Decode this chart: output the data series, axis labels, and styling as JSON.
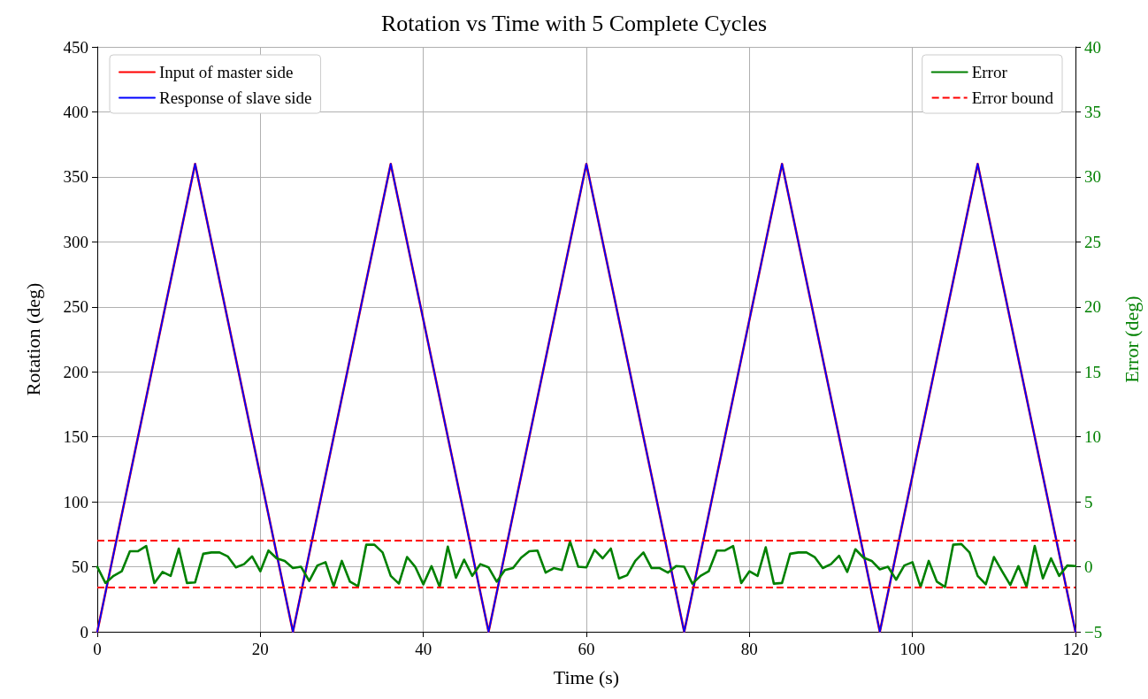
{
  "chart_data": {
    "type": "line",
    "title": "Rotation vs Time with 5 Complete Cycles",
    "xlabel": "Time (s)",
    "ylabel": "Rotation (deg)",
    "y2label": "Error (deg)",
    "xlim": [
      0,
      120
    ],
    "xticks": [
      0,
      20,
      40,
      60,
      80,
      100,
      120
    ],
    "ylim": [
      0,
      450
    ],
    "yticks": [
      0,
      50,
      100,
      150,
      200,
      250,
      300,
      350,
      400,
      450
    ],
    "y2lim": [
      -5,
      40
    ],
    "y2ticks": [
      -5,
      0,
      5,
      10,
      15,
      20,
      25,
      30,
      35,
      40
    ],
    "grid": true,
    "legend": "top",
    "marker": "none",
    "series": [
      {
        "name": "Input of master side",
        "color": "#ff0000",
        "x": [
          0,
          12,
          24,
          36,
          48,
          60,
          72,
          84,
          96,
          108,
          120
        ],
        "values": [
          0,
          360,
          0,
          360,
          0,
          360,
          0,
          360,
          0,
          360,
          0
        ]
      },
      {
        "name": "Response of slave side",
        "color": "#0000ff",
        "x": [
          0,
          12,
          24,
          36,
          48,
          60,
          72,
          84,
          96,
          108,
          120
        ],
        "values": [
          0,
          360,
          0,
          360,
          0,
          360,
          0,
          360,
          0,
          360,
          0
        ]
      },
      {
        "name": "Error",
        "color": "#008000",
        "axis": "y2",
        "x": [
          0,
          1,
          2,
          3,
          4,
          5,
          6,
          7,
          8,
          9,
          10,
          11,
          12,
          13,
          14,
          15,
          16,
          17,
          18,
          19,
          20,
          21,
          22,
          23,
          24,
          25,
          26,
          27,
          28,
          29,
          30,
          31,
          32,
          33,
          34,
          35,
          36,
          37,
          38,
          39,
          40,
          41,
          42,
          43,
          44,
          45,
          46,
          47,
          48,
          49,
          50,
          51,
          52,
          53,
          54,
          55,
          56,
          57,
          58,
          59,
          60,
          61,
          62,
          63,
          64,
          65,
          66,
          67,
          68,
          69,
          70,
          71,
          72,
          73,
          74,
          75,
          76,
          77,
          78,
          79,
          80,
          81,
          82,
          83,
          84,
          85,
          86,
          87,
          88,
          89,
          90,
          91,
          92,
          93,
          94,
          95,
          96,
          97,
          98,
          99,
          100,
          101,
          102,
          103,
          104,
          105,
          106,
          107,
          108,
          109,
          110,
          111,
          112,
          113,
          114,
          115,
          116,
          117,
          118,
          119,
          120
        ],
        "values": [
          0,
          -1.25,
          -0.7,
          -0.35,
          1.2,
          1.2,
          1.6,
          -1.25,
          -0.4,
          -0.7,
          1.4,
          -1.25,
          -1.2,
          1.0,
          1.1,
          1.1,
          0.8,
          -0.05,
          0.2,
          0.8,
          -0.35,
          1.25,
          0.65,
          0.45,
          -0.1,
          0,
          -1.1,
          0.1,
          0.35,
          -1.5,
          0.45,
          -1.15,
          -1.5,
          1.7,
          1.7,
          1.1,
          -0.7,
          -1.3,
          0.75,
          0,
          -1.35,
          0.05,
          -1.55,
          1.55,
          -0.85,
          0.55,
          -0.7,
          0.2,
          -0.05,
          -1.15,
          -0.25,
          -0.1,
          0.7,
          1.2,
          1.25,
          -0.45,
          -0.1,
          -0.25,
          1.95,
          0,
          -0.05,
          1.3,
          0.65,
          1.4,
          -0.9,
          -0.65,
          0.45,
          1.1,
          -0.1,
          -0.1,
          -0.45,
          0.05,
          0,
          -1.3,
          -0.7,
          -0.35,
          1.25,
          1.25,
          1.6,
          -1.25,
          -0.35,
          -0.7,
          1.5,
          -1.3,
          -1.25,
          1.0,
          1.1,
          1.1,
          0.75,
          -0.1,
          0.2,
          0.85,
          -0.4,
          1.35,
          0.7,
          0.45,
          -0.2,
          0,
          -1.0,
          0.1,
          0.35,
          -1.55,
          0.45,
          -1.15,
          -1.55,
          1.7,
          1.75,
          1.1,
          -0.7,
          -1.35,
          0.75,
          -0.35,
          -1.4,
          0.05,
          -1.55,
          1.6,
          -0.9,
          0.65,
          -0.7,
          0.1,
          0.05
        ]
      }
    ],
    "ref_lines": [
      {
        "axis": "y2",
        "value": 2.0,
        "label": "Error bound",
        "color": "#ff0000",
        "line_style": "dashed"
      },
      {
        "axis": "y2",
        "value": -1.6,
        "label": null,
        "color": "#ff0000",
        "line_style": "dashed"
      }
    ]
  }
}
